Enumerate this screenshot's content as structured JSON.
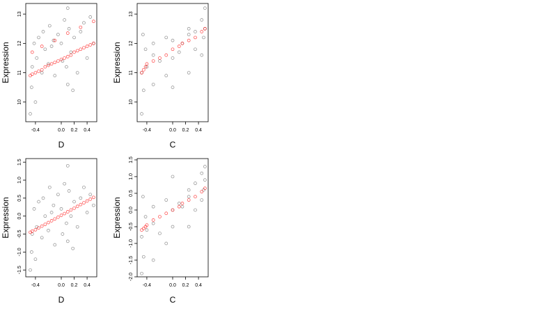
{
  "chart_data": [
    {
      "type": "scatter",
      "x_label": "D",
      "y_label": "Expression",
      "xlim": [
        -0.55,
        0.55
      ],
      "ylim": [
        9.33,
        13.36
      ],
      "xticks": [
        -0.4,
        {
          "value": 0,
          "label": "0.0"
        },
        0.2,
        0.4
      ],
      "yticks": [
        10,
        11,
        12,
        13
      ],
      "series": [
        {
          "color": "#000000",
          "x": [
            -0.48,
            -0.46,
            -0.45,
            -0.42,
            -0.4,
            -0.38,
            -0.35,
            -0.3,
            -0.28,
            -0.25,
            -0.2,
            -0.18,
            -0.15,
            -0.12,
            -0.1,
            -0.05,
            0.0,
            0.02,
            0.05,
            0.08,
            0.1,
            0.1,
            0.12,
            0.15,
            0.18,
            0.2,
            0.25,
            0.3,
            0.35,
            0.4,
            0.45,
            0.5
          ],
          "values": [
            9.6,
            10.5,
            11.2,
            12.0,
            10.0,
            11.5,
            12.2,
            11.0,
            12.4,
            11.8,
            11.3,
            12.6,
            11.9,
            12.1,
            10.9,
            12.3,
            12.0,
            11.4,
            12.8,
            11.2,
            13.2,
            10.6,
            12.5,
            11.7,
            10.4,
            12.2,
            11.0,
            12.4,
            12.7,
            11.5,
            12.9,
            12.0
          ]
        },
        {
          "color": "#ff0000",
          "x": [
            -0.48,
            -0.45,
            -0.4,
            -0.35,
            -0.3,
            -0.25,
            -0.2,
            -0.15,
            -0.1,
            -0.05,
            0.0,
            0.05,
            0.1,
            0.15,
            0.2,
            0.25,
            0.3,
            0.35,
            0.4,
            0.45,
            0.5,
            -0.45,
            -0.3,
            -0.1,
            0.1,
            0.3,
            0.5
          ],
          "values": [
            10.9,
            10.95,
            11.0,
            11.05,
            11.1,
            11.2,
            11.25,
            11.3,
            11.35,
            11.4,
            11.45,
            11.5,
            11.55,
            11.6,
            11.7,
            11.75,
            11.8,
            11.85,
            11.9,
            11.95,
            12.0,
            11.7,
            11.9,
            12.1,
            12.35,
            12.55,
            12.75
          ]
        }
      ]
    },
    {
      "type": "scatter",
      "x_label": "C",
      "y_label": "Expression",
      "xlim": [
        -0.55,
        0.55
      ],
      "ylim": [
        9.33,
        13.36
      ],
      "xticks": [
        -0.4,
        {
          "value": 0,
          "label": "0.0"
        },
        0.2,
        0.4
      ],
      "yticks": [
        10,
        11,
        12,
        13
      ],
      "series": [
        {
          "color": "#000000",
          "x": [
            -0.48,
            -0.48,
            -0.46,
            -0.45,
            -0.42,
            -0.4,
            -0.3,
            -0.3,
            -0.3,
            -0.2,
            -0.1,
            -0.1,
            0.0,
            0.0,
            0.0,
            0.1,
            0.15,
            0.25,
            0.25,
            0.25,
            0.35,
            0.35,
            0.45,
            0.45,
            0.48,
            0.5,
            0.5
          ],
          "values": [
            9.6,
            11.0,
            12.3,
            10.4,
            11.8,
            11.2,
            10.6,
            11.6,
            12.0,
            11.4,
            10.9,
            12.2,
            10.5,
            11.5,
            12.1,
            11.7,
            12.0,
            11.0,
            12.3,
            12.5,
            11.8,
            12.4,
            11.6,
            12.8,
            12.2,
            13.2,
            12.5
          ]
        },
        {
          "color": "#ff0000",
          "x": [
            -0.48,
            -0.45,
            -0.42,
            -0.4,
            -0.3,
            -0.2,
            -0.1,
            0.0,
            0.1,
            0.15,
            0.25,
            0.35,
            0.45,
            0.5
          ],
          "values": [
            11.0,
            11.1,
            11.2,
            11.3,
            11.4,
            11.5,
            11.6,
            11.8,
            11.9,
            12.0,
            12.1,
            12.2,
            12.4,
            12.5
          ]
        }
      ]
    },
    {
      "type": "scatter",
      "x_label": "D",
      "y_label": "Expression",
      "xlim": [
        -0.55,
        0.55
      ],
      "ylim": [
        -1.69,
        1.6
      ],
      "xticks": [
        -0.4,
        {
          "value": 0,
          "label": "0.0"
        },
        0.2,
        0.4
      ],
      "yticks": [
        -1.5,
        {
          "value": -1,
          "label": "-1.0"
        },
        -0.5,
        {
          "value": 0,
          "label": "0.0"
        },
        0.5,
        {
          "value": 1,
          "label": "1.0"
        },
        1.5
      ],
      "series": [
        {
          "color": "#000000",
          "x": [
            -0.48,
            -0.46,
            -0.45,
            -0.42,
            -0.4,
            -0.38,
            -0.35,
            -0.3,
            -0.28,
            -0.25,
            -0.2,
            -0.18,
            -0.15,
            -0.12,
            -0.1,
            -0.05,
            0.0,
            0.02,
            0.05,
            0.08,
            0.1,
            0.1,
            0.12,
            0.15,
            0.18,
            0.2,
            0.25,
            0.3,
            0.35,
            0.4,
            0.45,
            0.5
          ],
          "values": [
            -1.5,
            -1.0,
            -0.5,
            0.2,
            -1.2,
            -0.3,
            0.4,
            -0.6,
            0.5,
            0.0,
            -0.4,
            0.8,
            0.1,
            0.3,
            -0.8,
            0.6,
            0.2,
            -0.5,
            0.9,
            -0.2,
            1.4,
            -0.7,
            0.7,
            0.0,
            -0.9,
            0.4,
            -0.3,
            0.5,
            0.8,
            0.1,
            0.6,
            0.3
          ]
        },
        {
          "color": "#ff0000",
          "x": [
            -0.48,
            -0.45,
            -0.4,
            -0.35,
            -0.3,
            -0.25,
            -0.2,
            -0.15,
            -0.1,
            -0.05,
            0.0,
            0.05,
            0.1,
            0.15,
            0.2,
            0.25,
            0.3,
            0.35,
            0.4,
            0.45,
            0.5
          ],
          "values": [
            -0.45,
            -0.42,
            -0.38,
            -0.33,
            -0.28,
            -0.23,
            -0.18,
            -0.13,
            -0.08,
            -0.03,
            0.02,
            0.07,
            0.12,
            0.17,
            0.22,
            0.27,
            0.32,
            0.37,
            0.42,
            0.47,
            0.52
          ]
        }
      ]
    },
    {
      "type": "scatter",
      "x_label": "C",
      "y_label": "Expression",
      "xlim": [
        -0.55,
        0.55
      ],
      "ylim": [
        -2.0,
        1.54
      ],
      "xticks": [
        -0.4,
        {
          "value": 0,
          "label": "0.0"
        },
        0.2,
        0.4
      ],
      "yticks": [
        {
          "value": -2,
          "label": "-2.0"
        },
        -1.5,
        {
          "value": -1,
          "label": "-1.0"
        },
        -0.5,
        {
          "value": 0,
          "label": "0.0"
        },
        0.5,
        {
          "value": 1,
          "label": "1.0"
        },
        1.5
      ],
      "series": [
        {
          "color": "#000000",
          "x": [
            -0.48,
            -0.48,
            -0.46,
            -0.45,
            -0.42,
            -0.4,
            -0.3,
            -0.3,
            -0.3,
            -0.2,
            -0.1,
            -0.1,
            0.0,
            0.0,
            0.0,
            0.1,
            0.15,
            0.25,
            0.25,
            0.25,
            0.35,
            0.35,
            0.45,
            0.45,
            0.48,
            0.5,
            0.5
          ],
          "values": [
            -1.9,
            -0.8,
            0.4,
            -1.4,
            -0.2,
            -0.6,
            -1.5,
            -0.4,
            0.1,
            -0.7,
            -1.0,
            0.3,
            -0.5,
            0.0,
            1.0,
            0.2,
            0.1,
            -0.5,
            0.4,
            0.6,
            0.0,
            0.8,
            0.3,
            1.1,
            0.6,
            1.3,
            0.9
          ]
        },
        {
          "color": "#ff0000",
          "x": [
            -0.48,
            -0.45,
            -0.42,
            -0.4,
            -0.3,
            -0.2,
            -0.1,
            0.0,
            0.1,
            0.15,
            0.25,
            0.35,
            0.45,
            0.5
          ],
          "values": [
            -0.6,
            -0.55,
            -0.5,
            -0.45,
            -0.3,
            -0.2,
            -0.1,
            0.0,
            0.1,
            0.2,
            0.3,
            0.4,
            0.55,
            0.65
          ]
        }
      ]
    }
  ]
}
